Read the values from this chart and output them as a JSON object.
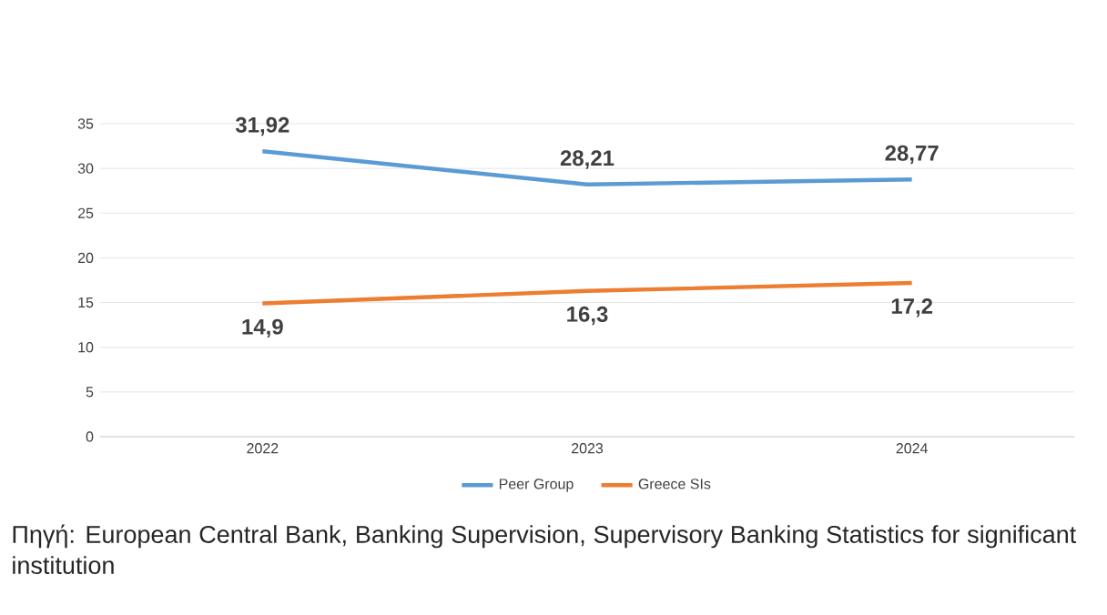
{
  "chart_data": {
    "type": "line",
    "categories": [
      "2022",
      "2023",
      "2024"
    ],
    "series": [
      {
        "name": "Peer Group",
        "color": "#5b9bd5",
        "values": [
          31.92,
          28.21,
          28.77
        ],
        "value_labels": [
          "31,92",
          "28,21",
          "28,77"
        ]
      },
      {
        "name": "Greece SIs",
        "color": "#ed7d31",
        "values": [
          14.9,
          16.3,
          17.2
        ],
        "value_labels": [
          "14,9",
          "16,3",
          "17,2"
        ]
      }
    ],
    "ylim": [
      0,
      35
    ],
    "yticks": [
      0,
      5,
      10,
      15,
      20,
      25,
      30,
      35
    ],
    "grid": "y",
    "legend": "bottom",
    "annotations": [
      "Πηγή: European Central Bank, Banking Supervision, Supervisory Banking Statistics for significant institution"
    ]
  }
}
